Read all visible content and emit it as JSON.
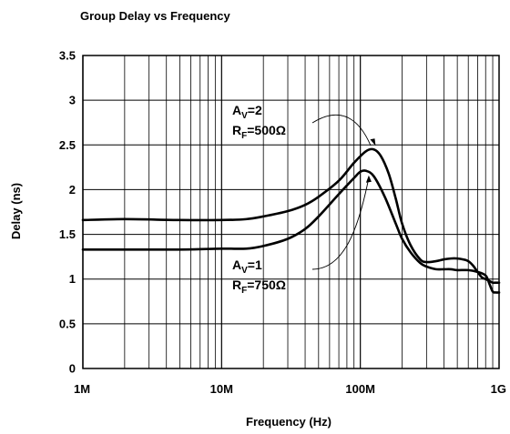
{
  "chart_data": {
    "type": "line",
    "title": "Group Delay vs Frequency",
    "xlabel": "Frequency (Hz)",
    "ylabel": "Delay (ns)",
    "xscale": "log",
    "xlim": [
      1000000,
      1000000000
    ],
    "ylim": [
      0,
      3.5
    ],
    "grid": true,
    "xticks": [
      {
        "value": 1000000,
        "label": "1M"
      },
      {
        "value": 10000000,
        "label": "10M"
      },
      {
        "value": 100000000,
        "label": "100M"
      },
      {
        "value": 1000000000,
        "label": "1G"
      }
    ],
    "yticks": [
      {
        "value": 0,
        "label": "0"
      },
      {
        "value": 0.5,
        "label": "0.5"
      },
      {
        "value": 1,
        "label": "1"
      },
      {
        "value": 1.5,
        "label": "1.5"
      },
      {
        "value": 2,
        "label": "2"
      },
      {
        "value": 2.5,
        "label": "2.5"
      },
      {
        "value": 3,
        "label": "3"
      },
      {
        "value": 3.5,
        "label": "3.5"
      }
    ],
    "series": [
      {
        "x": [
          1000000,
          2000000,
          5000000,
          10000000,
          15000000,
          20000000,
          30000000,
          40000000,
          50000000,
          70000000,
          90000000,
          110000000,
          125000000,
          140000000,
          160000000,
          180000000,
          200000000,
          230000000,
          270000000,
          300000000,
          350000000,
          400000000,
          450000000,
          500000000,
          550000000,
          600000000,
          650000000,
          700000000,
          750000000,
          800000000,
          850000000,
          900000000,
          950000000,
          1000000000
        ],
        "y": [
          1.66,
          1.67,
          1.66,
          1.66,
          1.67,
          1.7,
          1.76,
          1.83,
          1.92,
          2.1,
          2.3,
          2.43,
          2.45,
          2.38,
          2.18,
          1.9,
          1.62,
          1.38,
          1.22,
          1.19,
          1.2,
          1.22,
          1.23,
          1.23,
          1.22,
          1.2,
          1.15,
          1.08,
          1.02,
          1.0,
          0.98,
          0.96,
          0.96,
          0.96
        ]
      },
      {
        "x": [
          1000000,
          2000000,
          5000000,
          10000000,
          15000000,
          20000000,
          30000000,
          40000000,
          50000000,
          70000000,
          90000000,
          100000000,
          110000000,
          125000000,
          150000000,
          180000000,
          200000000,
          230000000,
          270000000,
          300000000,
          350000000,
          400000000,
          450000000,
          500000000,
          600000000,
          700000000,
          800000000,
          850000000,
          900000000,
          950000000,
          1000000000
        ],
        "y": [
          1.33,
          1.33,
          1.33,
          1.34,
          1.34,
          1.37,
          1.45,
          1.56,
          1.7,
          1.95,
          2.13,
          2.2,
          2.21,
          2.15,
          1.92,
          1.62,
          1.45,
          1.3,
          1.18,
          1.14,
          1.11,
          1.11,
          1.11,
          1.1,
          1.1,
          1.08,
          1.04,
          0.95,
          0.86,
          0.85,
          0.85
        ]
      }
    ],
    "annotations": [
      {
        "lines": [
          {
            "main": "A",
            "sub": "V",
            "rest": "=2"
          },
          {
            "main": "R",
            "sub": "F",
            "rest": "=500Ω"
          }
        ],
        "target": {
          "x": 125000000,
          "y": 2.45
        }
      },
      {
        "lines": [
          {
            "main": "A",
            "sub": "V",
            "rest": "=1"
          },
          {
            "main": "R",
            "sub": "F",
            "rest": "=750Ω"
          }
        ],
        "target": {
          "x": 115000000,
          "y": 2.2
        }
      }
    ],
    "colors": {
      "line": "#000000",
      "grid": "#000000",
      "background": "#ffffff"
    }
  }
}
